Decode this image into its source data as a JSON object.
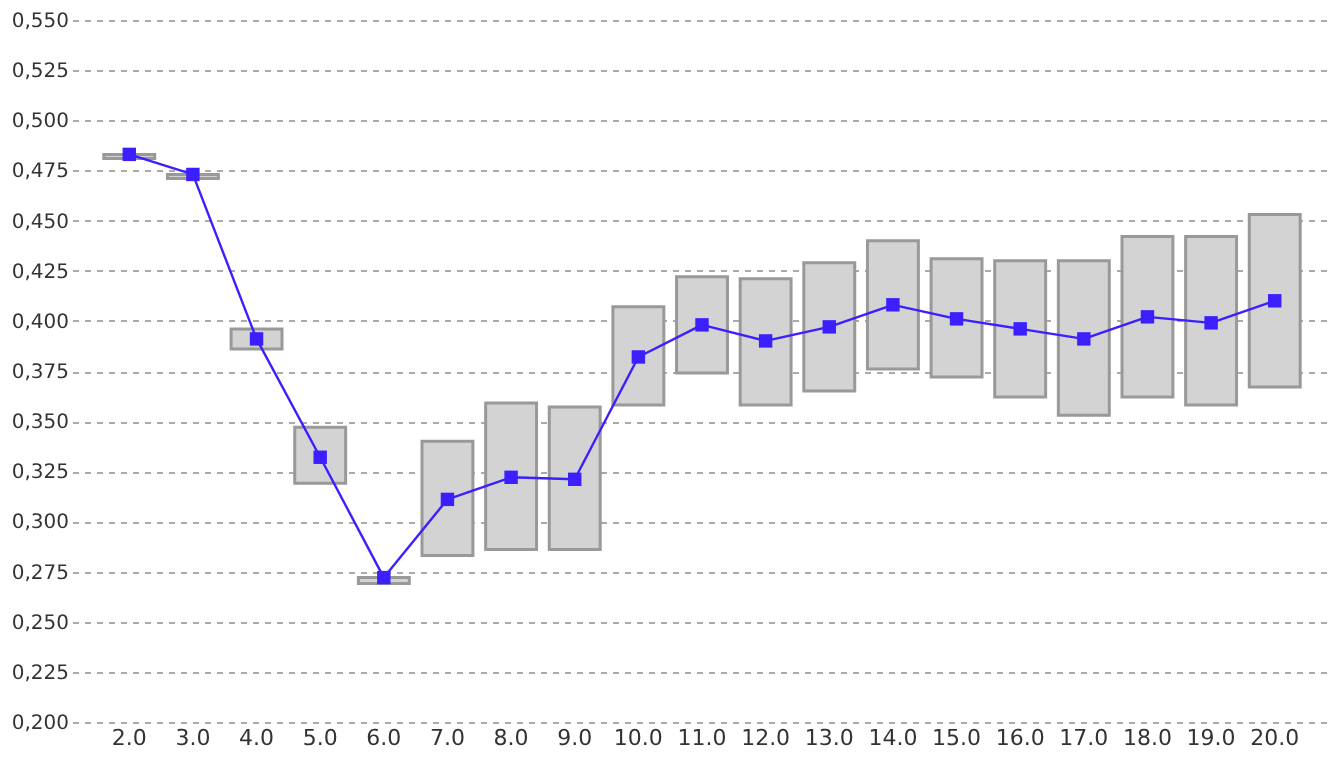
{
  "chart_data": {
    "type": "bar",
    "categories": [
      "2.0",
      "3.0",
      "4.0",
      "5.0",
      "6.0",
      "7.0",
      "8.0",
      "9.0",
      "10.0",
      "11.0",
      "12.0",
      "13.0",
      "14.0",
      "15.0",
      "16.0",
      "17.0",
      "18.0",
      "19.0",
      "20.0"
    ],
    "series": [
      {
        "color": "#d3d3d3",
        "base": [
          0.481,
          0.471,
          0.386,
          0.319,
          0.269,
          0.283,
          0.286,
          0.286,
          0.358,
          0.374,
          0.358,
          0.365,
          0.376,
          0.372,
          0.362,
          0.353,
          0.362,
          0.358,
          0.367
        ],
        "values": [
          0.002,
          0.002,
          0.01,
          0.028,
          0.003,
          0.057,
          0.073,
          0.071,
          0.049,
          0.048,
          0.063,
          0.064,
          0.064,
          0.059,
          0.068,
          0.077,
          0.08,
          0.084,
          0.086
        ]
      },
      {
        "type": "line",
        "color": "#3b1fff",
        "marker": "square",
        "values": [
          0.483,
          0.473,
          0.391,
          0.332,
          0.272,
          0.311,
          0.322,
          0.321,
          0.382,
          0.398,
          0.39,
          0.397,
          0.408,
          0.401,
          0.396,
          0.391,
          0.402,
          0.399,
          0.41
        ]
      }
    ],
    "ylim": [
      0.2,
      0.55
    ],
    "yticks": [
      {
        "value": 0.2,
        "label": "0,200"
      },
      {
        "value": 0.225,
        "label": "0,225"
      },
      {
        "value": 0.25,
        "label": "0,250"
      },
      {
        "value": 0.275,
        "label": "0,275"
      },
      {
        "value": 0.3,
        "label": "0,300"
      },
      {
        "value": 0.325,
        "label": "0,325"
      },
      {
        "value": 0.35,
        "label": "0,350"
      },
      {
        "value": 0.375,
        "label": "0,375"
      },
      {
        "value": 0.4,
        "label": "0,400"
      },
      {
        "value": 0.425,
        "label": "0,425"
      },
      {
        "value": 0.45,
        "label": "0,450"
      },
      {
        "value": 0.475,
        "label": "0,475"
      },
      {
        "value": 0.5,
        "label": "0,500"
      },
      {
        "value": 0.525,
        "label": "0,525"
      },
      {
        "value": 0.55,
        "label": "0,550"
      }
    ],
    "grid": "y"
  }
}
